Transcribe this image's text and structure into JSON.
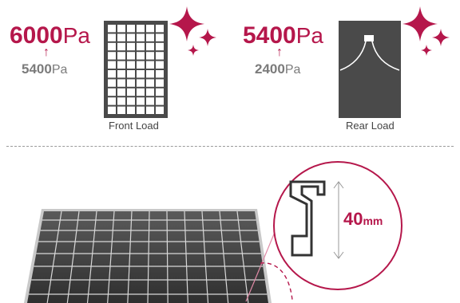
{
  "front_load": {
    "value_new": "6000",
    "value_old": "5400",
    "unit": "Pa",
    "label": "Front Load"
  },
  "rear_load": {
    "value_new": "5400",
    "value_old": "2400",
    "unit": "Pa",
    "label": "Rear Load"
  },
  "frame": {
    "height_value": "40",
    "height_unit": "mm"
  },
  "colors": {
    "accent": "#b5174b",
    "panel_dark": "#4a4a4a",
    "gray_text": "#7b7b7b"
  }
}
